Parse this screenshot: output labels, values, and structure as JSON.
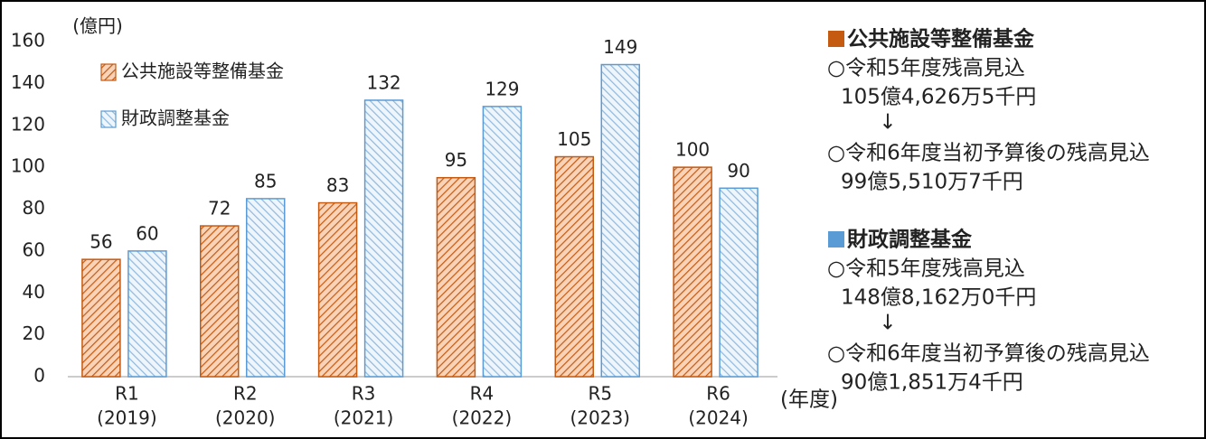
{
  "chart_data": {
    "type": "bar",
    "y_axis_label": "(億円)",
    "x_axis_label": "(年度)",
    "categories": [
      "R1",
      "R2",
      "R3",
      "R4",
      "R5",
      "R6"
    ],
    "category_sublabels": [
      "(2019)",
      "(2020)",
      "(2021)",
      "(2022)",
      "(2023)",
      "(2024)"
    ],
    "series": [
      {
        "name": "公共施設等整備基金",
        "color": "#c55a11",
        "values": [
          56,
          72,
          83,
          95,
          105,
          100
        ]
      },
      {
        "name": "財政調整基金",
        "color": "#5b9bd5",
        "values": [
          60,
          85,
          132,
          129,
          149,
          90
        ]
      }
    ],
    "ylim": [
      0,
      160
    ],
    "yticks": [
      0,
      20,
      40,
      60,
      80,
      100,
      120,
      140,
      160
    ],
    "grid": false,
    "legend": "top-left"
  },
  "side_panel": {
    "sections": [
      {
        "title": "公共施設等整備基金",
        "color": "#c55a11",
        "lines": [
          "○令和5年度残高見込",
          "105億4,626万5千円",
          "↓",
          "○令和6年度当初予算後の残高見込",
          "99億5,510万7千円"
        ]
      },
      {
        "title": "財政調整基金",
        "color": "#5b9bd5",
        "lines": [
          "○令和5年度残高見込",
          "148億8,162万0千円",
          "↓",
          "○令和6年度当初予算後の残高見込",
          "90億1,851万4千円"
        ]
      }
    ]
  }
}
